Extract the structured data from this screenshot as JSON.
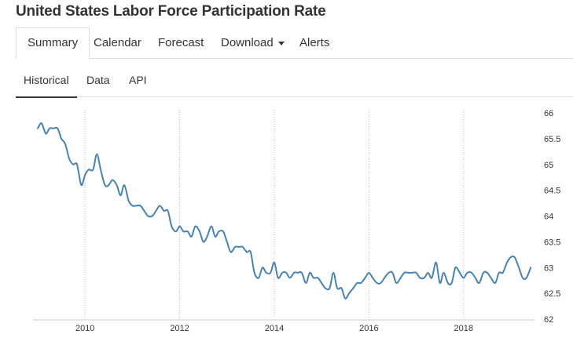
{
  "title": "United States Labor Force Participation Rate",
  "tabs": [
    {
      "label": "Summary"
    },
    {
      "label": "Calendar"
    },
    {
      "label": "Forecast"
    },
    {
      "label": "Download"
    },
    {
      "label": "Alerts"
    }
  ],
  "subtabs": [
    {
      "label": "Historical"
    },
    {
      "label": "Data"
    },
    {
      "label": "API"
    }
  ],
  "chart_data": {
    "type": "line",
    "title": "",
    "xlabel": "",
    "ylabel": "",
    "ylim": [
      62,
      66
    ],
    "xlim": [
      2008.9,
      2019.5
    ],
    "x_ticks": [
      "2010",
      "2012",
      "2014",
      "2016",
      "2018"
    ],
    "y_ticks": [
      "62",
      "62.5",
      "63",
      "63.5",
      "64",
      "64.5",
      "65",
      "65.5",
      "66"
    ],
    "y_axis_side": "right",
    "grid": "vertical dotted",
    "line_color": "#4682b4",
    "series": [
      {
        "x": [
          2009.0,
          2009.08,
          2009.17,
          2009.25,
          2009.33,
          2009.42,
          2009.5,
          2009.58,
          2009.67,
          2009.75,
          2009.83,
          2009.92,
          2010.0,
          2010.08,
          2010.17,
          2010.25,
          2010.33,
          2010.42,
          2010.5,
          2010.58,
          2010.67,
          2010.75,
          2010.83,
          2010.92,
          2011.0,
          2011.08,
          2011.17,
          2011.25,
          2011.33,
          2011.42,
          2011.5,
          2011.58,
          2011.67,
          2011.75,
          2011.83,
          2011.92,
          2012.0,
          2012.08,
          2012.17,
          2012.25,
          2012.33,
          2012.42,
          2012.5,
          2012.58,
          2012.67,
          2012.75,
          2012.83,
          2012.92,
          2013.0,
          2013.08,
          2013.17,
          2013.25,
          2013.33,
          2013.42,
          2013.5,
          2013.58,
          2013.67,
          2013.75,
          2013.83,
          2013.92,
          2014.0,
          2014.08,
          2014.17,
          2014.25,
          2014.33,
          2014.42,
          2014.5,
          2014.58,
          2014.67,
          2014.75,
          2014.83,
          2014.92,
          2015.0,
          2015.08,
          2015.17,
          2015.25,
          2015.33,
          2015.42,
          2015.5,
          2015.58,
          2015.67,
          2015.75,
          2015.83,
          2015.92,
          2016.0,
          2016.08,
          2016.17,
          2016.25,
          2016.33,
          2016.42,
          2016.5,
          2016.58,
          2016.67,
          2016.75,
          2016.83,
          2016.92,
          2017.0,
          2017.08,
          2017.17,
          2017.25,
          2017.33,
          2017.42,
          2017.5,
          2017.58,
          2017.67,
          2017.75,
          2017.83,
          2017.92,
          2018.0,
          2018.08,
          2018.17,
          2018.25,
          2018.33,
          2018.42,
          2018.5,
          2018.58,
          2018.67,
          2018.75,
          2018.83,
          2018.92,
          2019.0,
          2019.08,
          2019.17,
          2019.25,
          2019.33,
          2019.42
        ],
        "y": [
          65.7,
          65.8,
          65.6,
          65.7,
          65.7,
          65.7,
          65.5,
          65.4,
          65.1,
          65.0,
          65.0,
          64.6,
          64.8,
          64.9,
          64.9,
          65.2,
          64.9,
          64.6,
          64.6,
          64.7,
          64.6,
          64.4,
          64.6,
          64.3,
          64.2,
          64.2,
          64.2,
          64.1,
          64.0,
          64.0,
          64.1,
          64.2,
          64.1,
          64.1,
          63.8,
          63.7,
          63.8,
          63.7,
          63.7,
          63.6,
          63.8,
          63.7,
          63.5,
          63.6,
          63.8,
          63.6,
          63.7,
          63.7,
          63.5,
          63.3,
          63.4,
          63.4,
          63.4,
          63.3,
          63.3,
          62.9,
          62.8,
          63.0,
          62.9,
          62.9,
          63.1,
          62.8,
          62.9,
          62.9,
          62.8,
          62.9,
          62.9,
          62.9,
          62.7,
          62.9,
          62.8,
          62.8,
          62.7,
          62.6,
          62.6,
          62.9,
          62.6,
          62.6,
          62.4,
          62.5,
          62.6,
          62.7,
          62.7,
          62.8,
          62.9,
          62.8,
          62.7,
          62.7,
          62.8,
          62.9,
          62.9,
          62.7,
          62.8,
          62.9,
          62.9,
          62.9,
          62.9,
          62.8,
          62.8,
          62.9,
          62.8,
          63.1,
          62.7,
          62.9,
          62.7,
          62.7,
          63.0,
          62.9,
          62.8,
          62.9,
          62.9,
          62.8,
          62.7,
          62.9,
          62.9,
          62.8,
          62.7,
          62.9,
          62.9,
          63.1,
          63.2,
          63.2,
          63.0,
          62.8,
          62.8,
          63.0
        ]
      }
    ]
  }
}
